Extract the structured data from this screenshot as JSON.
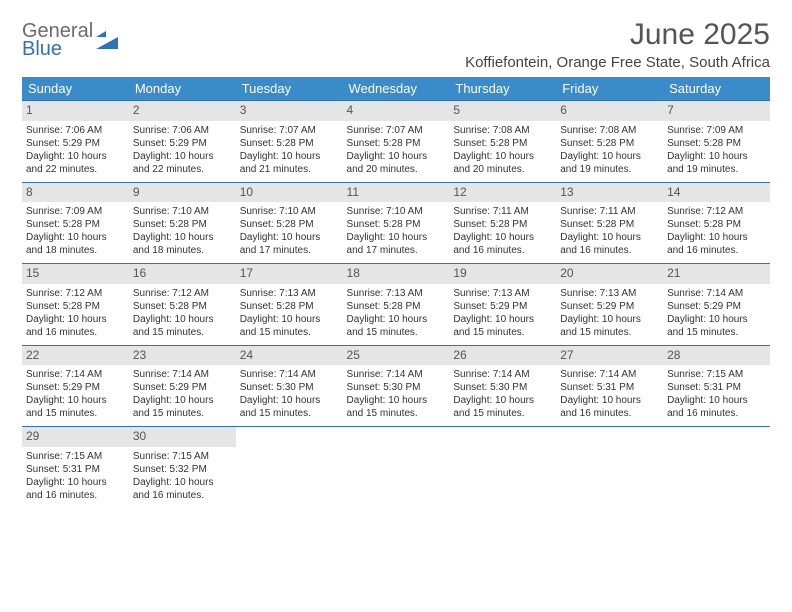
{
  "logo": {
    "line1": "General",
    "line2": "Blue"
  },
  "header": {
    "title": "June 2025",
    "location": "Koffiefontein, Orange Free State, South Africa"
  },
  "colors": {
    "header_bg": "#3a8bc9",
    "header_text": "#ffffff",
    "week_border": "#2f72b8",
    "daynum_bg": "#e5e5e5",
    "body_text": "#333333",
    "logo_gray": "#6b6b6b",
    "logo_blue": "#2f72b8"
  },
  "calendar": {
    "type": "calendar-table",
    "columns": [
      "Sunday",
      "Monday",
      "Tuesday",
      "Wednesday",
      "Thursday",
      "Friday",
      "Saturday"
    ],
    "weeks": [
      [
        {
          "n": 1,
          "sr": "7:06 AM",
          "ss": "5:29 PM",
          "dl": "10 hours and 22 minutes."
        },
        {
          "n": 2,
          "sr": "7:06 AM",
          "ss": "5:29 PM",
          "dl": "10 hours and 22 minutes."
        },
        {
          "n": 3,
          "sr": "7:07 AM",
          "ss": "5:28 PM",
          "dl": "10 hours and 21 minutes."
        },
        {
          "n": 4,
          "sr": "7:07 AM",
          "ss": "5:28 PM",
          "dl": "10 hours and 20 minutes."
        },
        {
          "n": 5,
          "sr": "7:08 AM",
          "ss": "5:28 PM",
          "dl": "10 hours and 20 minutes."
        },
        {
          "n": 6,
          "sr": "7:08 AM",
          "ss": "5:28 PM",
          "dl": "10 hours and 19 minutes."
        },
        {
          "n": 7,
          "sr": "7:09 AM",
          "ss": "5:28 PM",
          "dl": "10 hours and 19 minutes."
        }
      ],
      [
        {
          "n": 8,
          "sr": "7:09 AM",
          "ss": "5:28 PM",
          "dl": "10 hours and 18 minutes."
        },
        {
          "n": 9,
          "sr": "7:10 AM",
          "ss": "5:28 PM",
          "dl": "10 hours and 18 minutes."
        },
        {
          "n": 10,
          "sr": "7:10 AM",
          "ss": "5:28 PM",
          "dl": "10 hours and 17 minutes."
        },
        {
          "n": 11,
          "sr": "7:10 AM",
          "ss": "5:28 PM",
          "dl": "10 hours and 17 minutes."
        },
        {
          "n": 12,
          "sr": "7:11 AM",
          "ss": "5:28 PM",
          "dl": "10 hours and 16 minutes."
        },
        {
          "n": 13,
          "sr": "7:11 AM",
          "ss": "5:28 PM",
          "dl": "10 hours and 16 minutes."
        },
        {
          "n": 14,
          "sr": "7:12 AM",
          "ss": "5:28 PM",
          "dl": "10 hours and 16 minutes."
        }
      ],
      [
        {
          "n": 15,
          "sr": "7:12 AM",
          "ss": "5:28 PM",
          "dl": "10 hours and 16 minutes."
        },
        {
          "n": 16,
          "sr": "7:12 AM",
          "ss": "5:28 PM",
          "dl": "10 hours and 15 minutes."
        },
        {
          "n": 17,
          "sr": "7:13 AM",
          "ss": "5:28 PM",
          "dl": "10 hours and 15 minutes."
        },
        {
          "n": 18,
          "sr": "7:13 AM",
          "ss": "5:28 PM",
          "dl": "10 hours and 15 minutes."
        },
        {
          "n": 19,
          "sr": "7:13 AM",
          "ss": "5:29 PM",
          "dl": "10 hours and 15 minutes."
        },
        {
          "n": 20,
          "sr": "7:13 AM",
          "ss": "5:29 PM",
          "dl": "10 hours and 15 minutes."
        },
        {
          "n": 21,
          "sr": "7:14 AM",
          "ss": "5:29 PM",
          "dl": "10 hours and 15 minutes."
        }
      ],
      [
        {
          "n": 22,
          "sr": "7:14 AM",
          "ss": "5:29 PM",
          "dl": "10 hours and 15 minutes."
        },
        {
          "n": 23,
          "sr": "7:14 AM",
          "ss": "5:29 PM",
          "dl": "10 hours and 15 minutes."
        },
        {
          "n": 24,
          "sr": "7:14 AM",
          "ss": "5:30 PM",
          "dl": "10 hours and 15 minutes."
        },
        {
          "n": 25,
          "sr": "7:14 AM",
          "ss": "5:30 PM",
          "dl": "10 hours and 15 minutes."
        },
        {
          "n": 26,
          "sr": "7:14 AM",
          "ss": "5:30 PM",
          "dl": "10 hours and 15 minutes."
        },
        {
          "n": 27,
          "sr": "7:14 AM",
          "ss": "5:31 PM",
          "dl": "10 hours and 16 minutes."
        },
        {
          "n": 28,
          "sr": "7:15 AM",
          "ss": "5:31 PM",
          "dl": "10 hours and 16 minutes."
        }
      ],
      [
        {
          "n": 29,
          "sr": "7:15 AM",
          "ss": "5:31 PM",
          "dl": "10 hours and 16 minutes."
        },
        {
          "n": 30,
          "sr": "7:15 AM",
          "ss": "5:32 PM",
          "dl": "10 hours and 16 minutes."
        },
        null,
        null,
        null,
        null,
        null
      ]
    ],
    "labels": {
      "sunrise": "Sunrise:",
      "sunset": "Sunset:",
      "daylight": "Daylight:"
    }
  }
}
